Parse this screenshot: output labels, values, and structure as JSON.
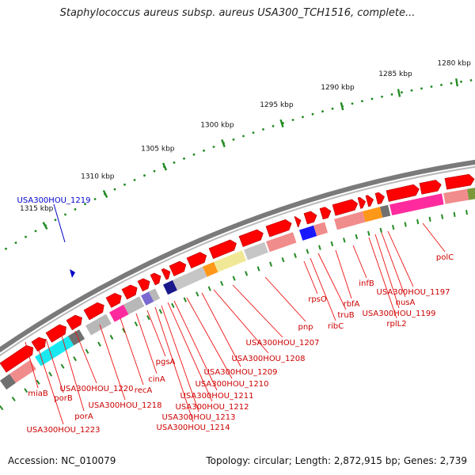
{
  "title": "Staphylococcus aureus subsp. aureus USA300_TCH1516, complete...",
  "footer": {
    "accession_label": "Accession:",
    "accession": "NC_010079",
    "topology_label": "Topology:",
    "topology": "circular",
    "length_label": "Length:",
    "length": "2,872,915 bp",
    "genes_label": "Genes:",
    "genes": "2,739"
  },
  "scale": {
    "ticks": [
      {
        "label": "1280 kbp",
        "kbp": 1280
      },
      {
        "label": "1285 kbp",
        "kbp": 1285
      },
      {
        "label": "1290 kbp",
        "kbp": 1290
      },
      {
        "label": "1295 kbp",
        "kbp": 1295
      },
      {
        "label": "1300 kbp",
        "kbp": 1300
      },
      {
        "label": "1305 kbp",
        "kbp": 1305
      },
      {
        "label": "1310 kbp",
        "kbp": 1310
      },
      {
        "label": "1315 kbp",
        "kbp": 1315
      }
    ]
  },
  "highlight": {
    "label": "USA300HOU_1219",
    "color": "#0000cc"
  },
  "colors": {
    "gene_forward": "#ff0000",
    "label_text": "#cc0000",
    "backbone": "#808080",
    "tick_marks": "#228b22"
  },
  "gene_labels": [
    {
      "text": "miaB"
    },
    {
      "text": "USA300HOU_1223"
    },
    {
      "text": "porB"
    },
    {
      "text": "porA"
    },
    {
      "text": "USA300HOU_1220"
    },
    {
      "text": "USA300HOU_1218"
    },
    {
      "text": "recA"
    },
    {
      "text": "cinA"
    },
    {
      "text": "pgsA"
    },
    {
      "text": "USA300HOU_1214"
    },
    {
      "text": "USA300HOU_1213"
    },
    {
      "text": "USA300HOU_1212"
    },
    {
      "text": "USA300HOU_1211"
    },
    {
      "text": "USA300HOU_1210"
    },
    {
      "text": "USA300HOU_1209"
    },
    {
      "text": "USA300HOU_1208"
    },
    {
      "text": "USA300HOU_1207"
    },
    {
      "text": "pnp"
    },
    {
      "text": "rpsO"
    },
    {
      "text": "ribC"
    },
    {
      "text": "truB"
    },
    {
      "text": "rbfA"
    },
    {
      "text": "infB"
    },
    {
      "text": "rplL2"
    },
    {
      "text": "USA300HOU_1199"
    },
    {
      "text": "nusA"
    },
    {
      "text": "USA300HOU_1197"
    },
    {
      "text": "polC"
    }
  ]
}
